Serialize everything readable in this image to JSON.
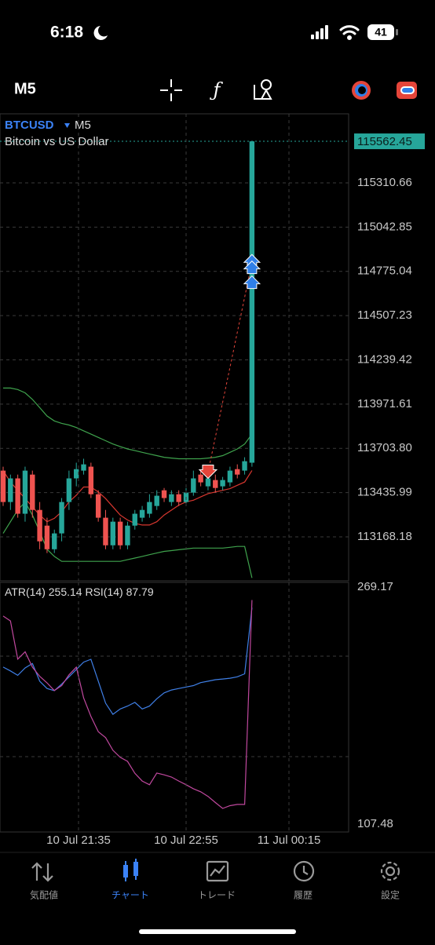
{
  "status_bar": {
    "time": "6:18",
    "battery": "41"
  },
  "toolbar": {
    "timeframe": "M5"
  },
  "chart_data": [
    {
      "type": "candlestick",
      "symbol": "BTCUSD",
      "description": "Bitcoin vs US Dollar",
      "ylim": [
        112902,
        115729
      ],
      "yticks": [
        115310.66,
        115042.85,
        114775.04,
        114507.23,
        114239.42,
        113971.61,
        {
          "value": 113703.8,
          "label": "113703.80"
        },
        113435.99,
        113168.18
      ],
      "grid": true,
      "up_color": "#26a69a",
      "down_color": "#ef5350",
      "open": [
        113569,
        113379,
        113522,
        113308,
        113545,
        113331,
        113236,
        113093,
        113189,
        113379,
        113522,
        113569,
        113593,
        113426,
        113284,
        113117,
        113260,
        113117,
        113236,
        113284,
        113308,
        113355,
        113450,
        113379,
        113426,
        113379,
        113436,
        113545,
        113474,
        113512,
        113474,
        113498,
        113578,
        113569,
        113617
      ],
      "high": [
        113593,
        113545,
        113545,
        113593,
        113569,
        113379,
        113284,
        113212,
        113403,
        113569,
        113617,
        113641,
        113617,
        113450,
        113331,
        113284,
        113284,
        113260,
        113331,
        113355,
        113426,
        113450,
        113464,
        113450,
        113450,
        113464,
        113569,
        113569,
        113545,
        113545,
        113531,
        113593,
        113607,
        113650,
        115562.45
      ],
      "low": [
        113355,
        113331,
        113284,
        113260,
        113284,
        113093,
        113070,
        113070,
        113141,
        113331,
        113474,
        113545,
        113403,
        113260,
        113093,
        113093,
        113093,
        113093,
        113212,
        113260,
        113284,
        113331,
        113379,
        113355,
        113355,
        113355,
        113417,
        113474,
        113450,
        113436,
        113450,
        113474,
        113522,
        113545,
        113593
      ],
      "close": [
        113379,
        113522,
        113308,
        113569,
        113331,
        113141,
        113093,
        113189,
        113379,
        113522,
        113578,
        113607,
        113426,
        113284,
        113117,
        113260,
        113117,
        113236,
        113308,
        113331,
        113379,
        113417,
        113403,
        113426,
        113379,
        113436,
        113522,
        113498,
        113522,
        113464,
        113512,
        113569,
        113545,
        113626,
        115562.45
      ],
      "bands": {
        "color": "#3fa34d",
        "upper": [
          114069,
          114069,
          114060,
          114040,
          114000,
          113950,
          113900,
          113870,
          113855,
          113845,
          113830,
          113810,
          113790,
          113770,
          113750,
          113730,
          113715,
          113700,
          113690,
          113680,
          113670,
          113660,
          113650,
          113645,
          113641,
          113641,
          113641,
          113641,
          113645,
          113650,
          113660,
          113680,
          113700,
          113730,
          113790
        ],
        "lower": [
          113189,
          113260,
          113331,
          113379,
          113300,
          113200,
          113093,
          113050,
          113020,
          113020,
          113020,
          113020,
          113020,
          113020,
          113020,
          113020,
          113020,
          113030,
          113040,
          113050,
          113060,
          113070,
          113080,
          113085,
          113090,
          113095,
          113100,
          113100,
          113100,
          113100,
          113100,
          113105,
          113110,
          113110,
          112920
        ]
      },
      "ma": {
        "color": "#d8372f",
        "values": [
          113569,
          113500,
          113450,
          113400,
          113350,
          113300,
          113260,
          113280,
          113320,
          113380,
          113420,
          113470,
          113470,
          113440,
          113400,
          113350,
          113300,
          113270,
          113250,
          113240,
          113240,
          113260,
          113300,
          113330,
          113360,
          113380,
          113390,
          113410,
          113430,
          113440,
          113450,
          113460,
          113480,
          113500,
          113570
        ]
      },
      "trades": {
        "sell": 113560,
        "sell_color": "#e5453a",
        "buy": [
          114830,
          114790,
          114700
        ],
        "buy_color": "#2f7fe8"
      },
      "time_labels": [
        "10 Jul 21:35",
        "10 Jul 22:55",
        "11 Jul 00:15"
      ]
    },
    {
      "type": "line",
      "ylim": [
        102.13,
        272.38
      ],
      "yticks": [
        269.17,
        107.48
      ],
      "y2lim": [
        12.45,
        93.53
      ],
      "series": [
        {
          "name": "ATR(14)",
          "color": "#3f7fe6",
          "values": [
            214.6,
            212,
            209,
            214,
            217,
            205,
            200,
            198.5,
            203,
            208,
            213,
            218,
            219.9,
            205,
            190,
            182.4,
            186,
            188,
            190.5,
            186,
            188,
            193,
            197,
            199,
            200,
            201,
            202,
            204,
            205,
            206,
            206.5,
            207,
            208,
            210,
            255.14
          ]
        },
        {
          "name": "RSI(14)",
          "color": "#c0489e",
          "axis": "y2",
          "values": [
            82.6,
            81,
            68.6,
            71,
            66,
            63,
            60.9,
            58.4,
            60,
            63.5,
            66,
            56,
            50,
            45,
            43.1,
            39,
            36.7,
            35.4,
            31.5,
            29,
            27.8,
            31.6,
            31,
            30.3,
            29,
            27.8,
            26.5,
            25.5,
            24,
            22,
            20.1,
            21,
            21.4,
            21.4,
            87.79
          ]
        }
      ]
    }
  ],
  "nav": [
    "気配値",
    "チャート",
    "トレード",
    "履歴",
    "設定"
  ]
}
